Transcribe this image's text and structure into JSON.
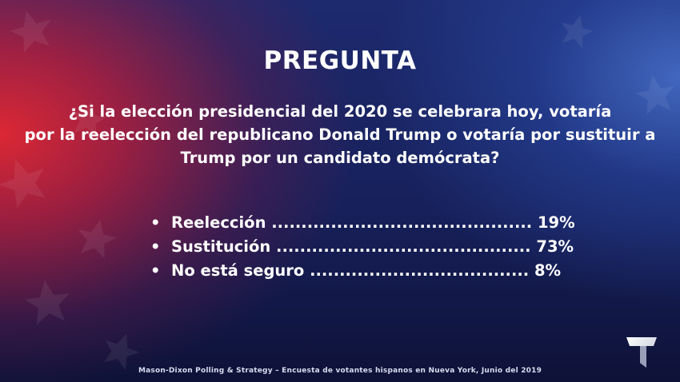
{
  "title": "PREGUNTA",
  "question": {
    "line1": "¿Si la elección presidencial del 2020 se celebrara hoy, votaría",
    "line2": "por la reelección del republicano Donald Trump o votaría por sustituir a",
    "line3": "Trump por un candidato demócrata?"
  },
  "answers": [
    {
      "text": "Reelección ............................................ 19%"
    },
    {
      "text": "Sustitución ........................................... 73%"
    },
    {
      "text": "No está seguro ..................................... 8%"
    }
  ],
  "bullet": "•",
  "footer": "Mason-Dixon  Polling & Strategy – Encuesta de votantes hispanos en Nueva York, Junio del 2019",
  "colors": {
    "red": "#e52a37",
    "blue": "#1d2a6e",
    "text": "#ffffff"
  },
  "icons": {
    "logo": "telemundo-logo-icon"
  }
}
